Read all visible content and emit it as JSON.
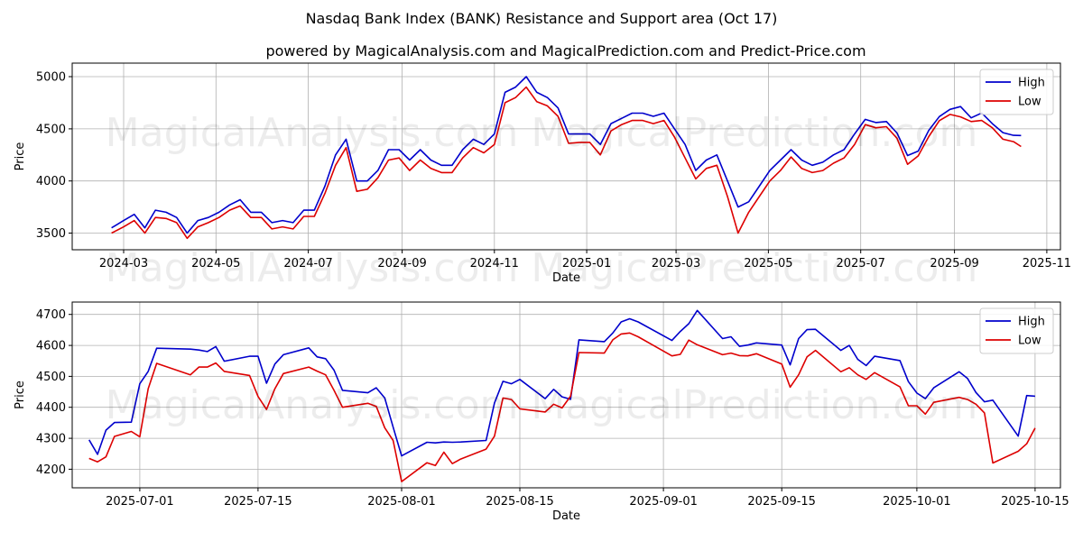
{
  "title": "Nasdaq Bank Index (BANK) Resistance and Support area (Oct 17)",
  "subtitle": "powered by MagicalAnalysis.com and MagicalPrediction.com and Predict-Price.com",
  "watermark": "MagicalAnalysis.com    MagicalPrediction.com",
  "colors": {
    "high": "#0000cc",
    "low": "#dd0000",
    "grid": "#b0b0b0"
  },
  "chart_data": [
    {
      "type": "line",
      "xlabel": "Date",
      "ylabel": "Price",
      "legend": "top-right",
      "grid": true,
      "xlim": [
        "2024-01-27",
        "2025-11-10"
      ],
      "ylim": [
        3340,
        5130
      ],
      "x_ticks": [
        "2024-03-01",
        "2024-05-01",
        "2024-07-01",
        "2024-09-01",
        "2024-11-01",
        "2025-01-01",
        "2025-03-01",
        "2025-05-01",
        "2025-07-01",
        "2025-09-01",
        "2025-11-01"
      ],
      "x_tick_labels": [
        "2024-03",
        "2024-05",
        "2024-07",
        "2024-09",
        "2024-11",
        "2025-01",
        "2025-03",
        "2025-05",
        "2025-07",
        "2025-09",
        "2025-11"
      ],
      "y_ticks": [
        3500,
        4000,
        4500,
        5000
      ],
      "y_tick_labels": [
        "3500",
        "4000",
        "4500",
        "5000"
      ],
      "series": [
        {
          "name": "High",
          "x": [
            "2024-02-22",
            "2024-03-01",
            "2024-03-08",
            "2024-03-15",
            "2024-03-22",
            "2024-03-29",
            "2024-04-05",
            "2024-04-12",
            "2024-04-19",
            "2024-04-26",
            "2024-05-03",
            "2024-05-10",
            "2024-05-17",
            "2024-05-24",
            "2024-05-31",
            "2024-06-07",
            "2024-06-14",
            "2024-06-21",
            "2024-06-28",
            "2024-07-05",
            "2024-07-12",
            "2024-07-19",
            "2024-07-26",
            "2024-08-02",
            "2024-08-09",
            "2024-08-16",
            "2024-08-23",
            "2024-08-30",
            "2024-09-06",
            "2024-09-13",
            "2024-09-20",
            "2024-09-27",
            "2024-10-04",
            "2024-10-11",
            "2024-10-18",
            "2024-10-25",
            "2024-11-01",
            "2024-11-08",
            "2024-11-15",
            "2024-11-22",
            "2024-11-29",
            "2024-12-06",
            "2024-12-13",
            "2024-12-20",
            "2024-12-27",
            "2025-01-03",
            "2025-01-10",
            "2025-01-17",
            "2025-01-24",
            "2025-01-31",
            "2025-02-07",
            "2025-02-14",
            "2025-02-21",
            "2025-02-28",
            "2025-03-07",
            "2025-03-14",
            "2025-03-21",
            "2025-03-28",
            "2025-04-04",
            "2025-04-11",
            "2025-04-18",
            "2025-04-25",
            "2025-05-02",
            "2025-05-09",
            "2025-05-16",
            "2025-05-23",
            "2025-05-30",
            "2025-06-06",
            "2025-06-13",
            "2025-06-20",
            "2025-06-27",
            "2025-07-04",
            "2025-07-11",
            "2025-07-18",
            "2025-07-25",
            "2025-08-01",
            "2025-08-08",
            "2025-08-15",
            "2025-08-22",
            "2025-08-29",
            "2025-09-05",
            "2025-09-12",
            "2025-09-19",
            "2025-09-26",
            "2025-10-03",
            "2025-10-10",
            "2025-10-15"
          ],
          "values": [
            3550,
            3620,
            3680,
            3550,
            3720,
            3700,
            3650,
            3500,
            3620,
            3650,
            3700,
            3770,
            3820,
            3700,
            3700,
            3600,
            3620,
            3600,
            3720,
            3720,
            3950,
            4250,
            4400,
            4000,
            4000,
            4100,
            4300,
            4300,
            4200,
            4300,
            4200,
            4150,
            4150,
            4300,
            4400,
            4350,
            4450,
            4850,
            4900,
            5000,
            4850,
            4800,
            4700,
            4450,
            4450,
            4450,
            4350,
            4550,
            4600,
            4650,
            4650,
            4620,
            4650,
            4500,
            4350,
            4100,
            4200,
            4250,
            4000,
            3750,
            3800,
            3950,
            4100,
            4200,
            4300,
            4200,
            4150,
            4180,
            4250,
            4300,
            4450,
            4590,
            4560,
            4570,
            4460,
            4244,
            4286,
            4485,
            4617,
            4686,
            4713,
            4605,
            4652,
            4550,
            4463,
            4437,
            4436
          ]
        },
        {
          "name": "Low",
          "x": [
            "2024-02-22",
            "2024-03-01",
            "2024-03-08",
            "2024-03-15",
            "2024-03-22",
            "2024-03-29",
            "2024-04-05",
            "2024-04-12",
            "2024-04-19",
            "2024-04-26",
            "2024-05-03",
            "2024-05-10",
            "2024-05-17",
            "2024-05-24",
            "2024-05-31",
            "2024-06-07",
            "2024-06-14",
            "2024-06-21",
            "2024-06-28",
            "2024-07-05",
            "2024-07-12",
            "2024-07-19",
            "2024-07-26",
            "2024-08-02",
            "2024-08-09",
            "2024-08-16",
            "2024-08-23",
            "2024-08-30",
            "2024-09-06",
            "2024-09-13",
            "2024-09-20",
            "2024-09-27",
            "2024-10-04",
            "2024-10-11",
            "2024-10-18",
            "2024-10-25",
            "2024-11-01",
            "2024-11-08",
            "2024-11-15",
            "2024-11-22",
            "2024-11-29",
            "2024-12-06",
            "2024-12-13",
            "2024-12-20",
            "2024-12-27",
            "2025-01-03",
            "2025-01-10",
            "2025-01-17",
            "2025-01-24",
            "2025-01-31",
            "2025-02-07",
            "2025-02-14",
            "2025-02-21",
            "2025-02-28",
            "2025-03-07",
            "2025-03-14",
            "2025-03-21",
            "2025-03-28",
            "2025-04-04",
            "2025-04-11",
            "2025-04-18",
            "2025-04-25",
            "2025-05-02",
            "2025-05-09",
            "2025-05-16",
            "2025-05-23",
            "2025-05-30",
            "2025-06-06",
            "2025-06-13",
            "2025-06-20",
            "2025-06-27",
            "2025-07-04",
            "2025-07-11",
            "2025-07-18",
            "2025-07-25",
            "2025-08-01",
            "2025-08-08",
            "2025-08-15",
            "2025-08-22",
            "2025-08-29",
            "2025-09-05",
            "2025-09-12",
            "2025-09-19",
            "2025-09-26",
            "2025-10-03",
            "2025-10-10",
            "2025-10-15"
          ],
          "values": [
            3500,
            3560,
            3620,
            3500,
            3650,
            3640,
            3600,
            3450,
            3560,
            3600,
            3650,
            3720,
            3760,
            3650,
            3650,
            3540,
            3560,
            3540,
            3660,
            3660,
            3880,
            4150,
            4320,
            3900,
            3920,
            4030,
            4200,
            4220,
            4100,
            4200,
            4120,
            4080,
            4080,
            4220,
            4320,
            4270,
            4350,
            4750,
            4800,
            4900,
            4760,
            4720,
            4620,
            4360,
            4370,
            4370,
            4250,
            4480,
            4540,
            4580,
            4580,
            4550,
            4580,
            4420,
            4220,
            4020,
            4120,
            4150,
            3850,
            3500,
            3700,
            3850,
            4000,
            4100,
            4230,
            4120,
            4080,
            4100,
            4170,
            4220,
            4350,
            4540,
            4510,
            4520,
            4410,
            4160,
            4240,
            4425,
            4578,
            4638,
            4615,
            4570,
            4580,
            4510,
            4400,
            4377,
            4330
          ]
        }
      ]
    },
    {
      "type": "line",
      "xlabel": "Date",
      "ylabel": "Price",
      "legend": "top-right",
      "grid": true,
      "xlim": [
        "2025-06-23",
        "2025-10-18"
      ],
      "ylim": [
        4140,
        4740
      ],
      "x_ticks": [
        "2025-07-01",
        "2025-07-15",
        "2025-08-01",
        "2025-08-15",
        "2025-09-01",
        "2025-09-15",
        "2025-10-01",
        "2025-10-15"
      ],
      "x_tick_labels": [
        "2025-07-01",
        "2025-07-15",
        "2025-08-01",
        "2025-08-15",
        "2025-09-01",
        "2025-09-15",
        "2025-10-01",
        "2025-10-15"
      ],
      "y_ticks": [
        4200,
        4300,
        4400,
        4500,
        4600,
        4700
      ],
      "y_tick_labels": [
        "4200",
        "4300",
        "4400",
        "4500",
        "4600",
        "4700"
      ],
      "series": [
        {
          "name": "High",
          "x": [
            "2025-06-25",
            "2025-06-26",
            "2025-06-27",
            "2025-06-28",
            "2025-06-30",
            "2025-07-01",
            "2025-07-02",
            "2025-07-03",
            "2025-07-07",
            "2025-07-08",
            "2025-07-09",
            "2025-07-10",
            "2025-07-11",
            "2025-07-14",
            "2025-07-15",
            "2025-07-16",
            "2025-07-17",
            "2025-07-18",
            "2025-07-21",
            "2025-07-22",
            "2025-07-23",
            "2025-07-24",
            "2025-07-25",
            "2025-07-28",
            "2025-07-29",
            "2025-07-30",
            "2025-07-31",
            "2025-08-01",
            "2025-08-04",
            "2025-08-05",
            "2025-08-06",
            "2025-08-07",
            "2025-08-08",
            "2025-08-11",
            "2025-08-12",
            "2025-08-13",
            "2025-08-14",
            "2025-08-15",
            "2025-08-18",
            "2025-08-19",
            "2025-08-20",
            "2025-08-21",
            "2025-08-22",
            "2025-08-25",
            "2025-08-26",
            "2025-08-27",
            "2025-08-28",
            "2025-08-29",
            "2025-09-02",
            "2025-09-03",
            "2025-09-04",
            "2025-09-05",
            "2025-09-08",
            "2025-09-09",
            "2025-09-10",
            "2025-09-11",
            "2025-09-12",
            "2025-09-15",
            "2025-09-16",
            "2025-09-17",
            "2025-09-18",
            "2025-09-19",
            "2025-09-22",
            "2025-09-23",
            "2025-09-24",
            "2025-09-25",
            "2025-09-26",
            "2025-09-29",
            "2025-09-30",
            "2025-10-01",
            "2025-10-02",
            "2025-10-03",
            "2025-10-06",
            "2025-10-07",
            "2025-10-08",
            "2025-10-09",
            "2025-10-10",
            "2025-10-13",
            "2025-10-14",
            "2025-10-15"
          ],
          "values": [
            4295,
            4248,
            4326,
            4351,
            4352,
            4476,
            4516,
            4591,
            4588,
            4585,
            4580,
            4596,
            4549,
            4565,
            4565,
            4478,
            4540,
            4570,
            4592,
            4563,
            4557,
            4520,
            4455,
            4447,
            4463,
            4430,
            4336,
            4243,
            4287,
            4285,
            4288,
            4287,
            4288,
            4293,
            4414,
            4484,
            4476,
            4490,
            4428,
            4458,
            4434,
            4426,
            4618,
            4612,
            4640,
            4676,
            4686,
            4676,
            4616,
            4645,
            4670,
            4713,
            4622,
            4628,
            4597,
            4601,
            4608,
            4601,
            4537,
            4622,
            4651,
            4652,
            4584,
            4600,
            4555,
            4535,
            4565,
            4551,
            4483,
            4446,
            4428,
            4463,
            4515,
            4493,
            4448,
            4418,
            4423,
            4307,
            4438,
            4436
          ]
        },
        {
          "name": "Low",
          "x": [
            "2025-06-25",
            "2025-06-26",
            "2025-06-27",
            "2025-06-28",
            "2025-06-30",
            "2025-07-01",
            "2025-07-02",
            "2025-07-03",
            "2025-07-07",
            "2025-07-08",
            "2025-07-09",
            "2025-07-10",
            "2025-07-11",
            "2025-07-14",
            "2025-07-15",
            "2025-07-16",
            "2025-07-17",
            "2025-07-18",
            "2025-07-21",
            "2025-07-22",
            "2025-07-23",
            "2025-07-24",
            "2025-07-25",
            "2025-07-28",
            "2025-07-29",
            "2025-07-30",
            "2025-07-31",
            "2025-08-01",
            "2025-08-04",
            "2025-08-05",
            "2025-08-06",
            "2025-08-07",
            "2025-08-08",
            "2025-08-11",
            "2025-08-12",
            "2025-08-13",
            "2025-08-14",
            "2025-08-15",
            "2025-08-18",
            "2025-08-19",
            "2025-08-20",
            "2025-08-21",
            "2025-08-22",
            "2025-08-25",
            "2025-08-26",
            "2025-08-27",
            "2025-08-28",
            "2025-08-29",
            "2025-09-02",
            "2025-09-03",
            "2025-09-04",
            "2025-09-05",
            "2025-09-08",
            "2025-09-09",
            "2025-09-10",
            "2025-09-11",
            "2025-09-12",
            "2025-09-15",
            "2025-09-16",
            "2025-09-17",
            "2025-09-18",
            "2025-09-19",
            "2025-09-22",
            "2025-09-23",
            "2025-09-24",
            "2025-09-25",
            "2025-09-26",
            "2025-09-29",
            "2025-09-30",
            "2025-10-01",
            "2025-10-02",
            "2025-10-03",
            "2025-10-06",
            "2025-10-07",
            "2025-10-08",
            "2025-10-09",
            "2025-10-10",
            "2025-10-13",
            "2025-10-14",
            "2025-10-15"
          ],
          "values": [
            4235,
            4224,
            4240,
            4306,
            4322,
            4305,
            4460,
            4542,
            4505,
            4530,
            4530,
            4543,
            4516,
            4503,
            4435,
            4393,
            4460,
            4509,
            4530,
            4517,
            4505,
            4455,
            4400,
            4413,
            4403,
            4334,
            4293,
            4160,
            4221,
            4212,
            4255,
            4218,
            4233,
            4265,
            4307,
            4430,
            4425,
            4395,
            4385,
            4410,
            4398,
            4436,
            4577,
            4575,
            4618,
            4637,
            4640,
            4628,
            4566,
            4571,
            4617,
            4602,
            4570,
            4575,
            4567,
            4566,
            4573,
            4540,
            4465,
            4505,
            4563,
            4584,
            4515,
            4528,
            4505,
            4490,
            4512,
            4466,
            4405,
            4405,
            4378,
            4416,
            4432,
            4425,
            4410,
            4382,
            4220,
            4258,
            4282,
            4333
          ]
        }
      ]
    }
  ]
}
